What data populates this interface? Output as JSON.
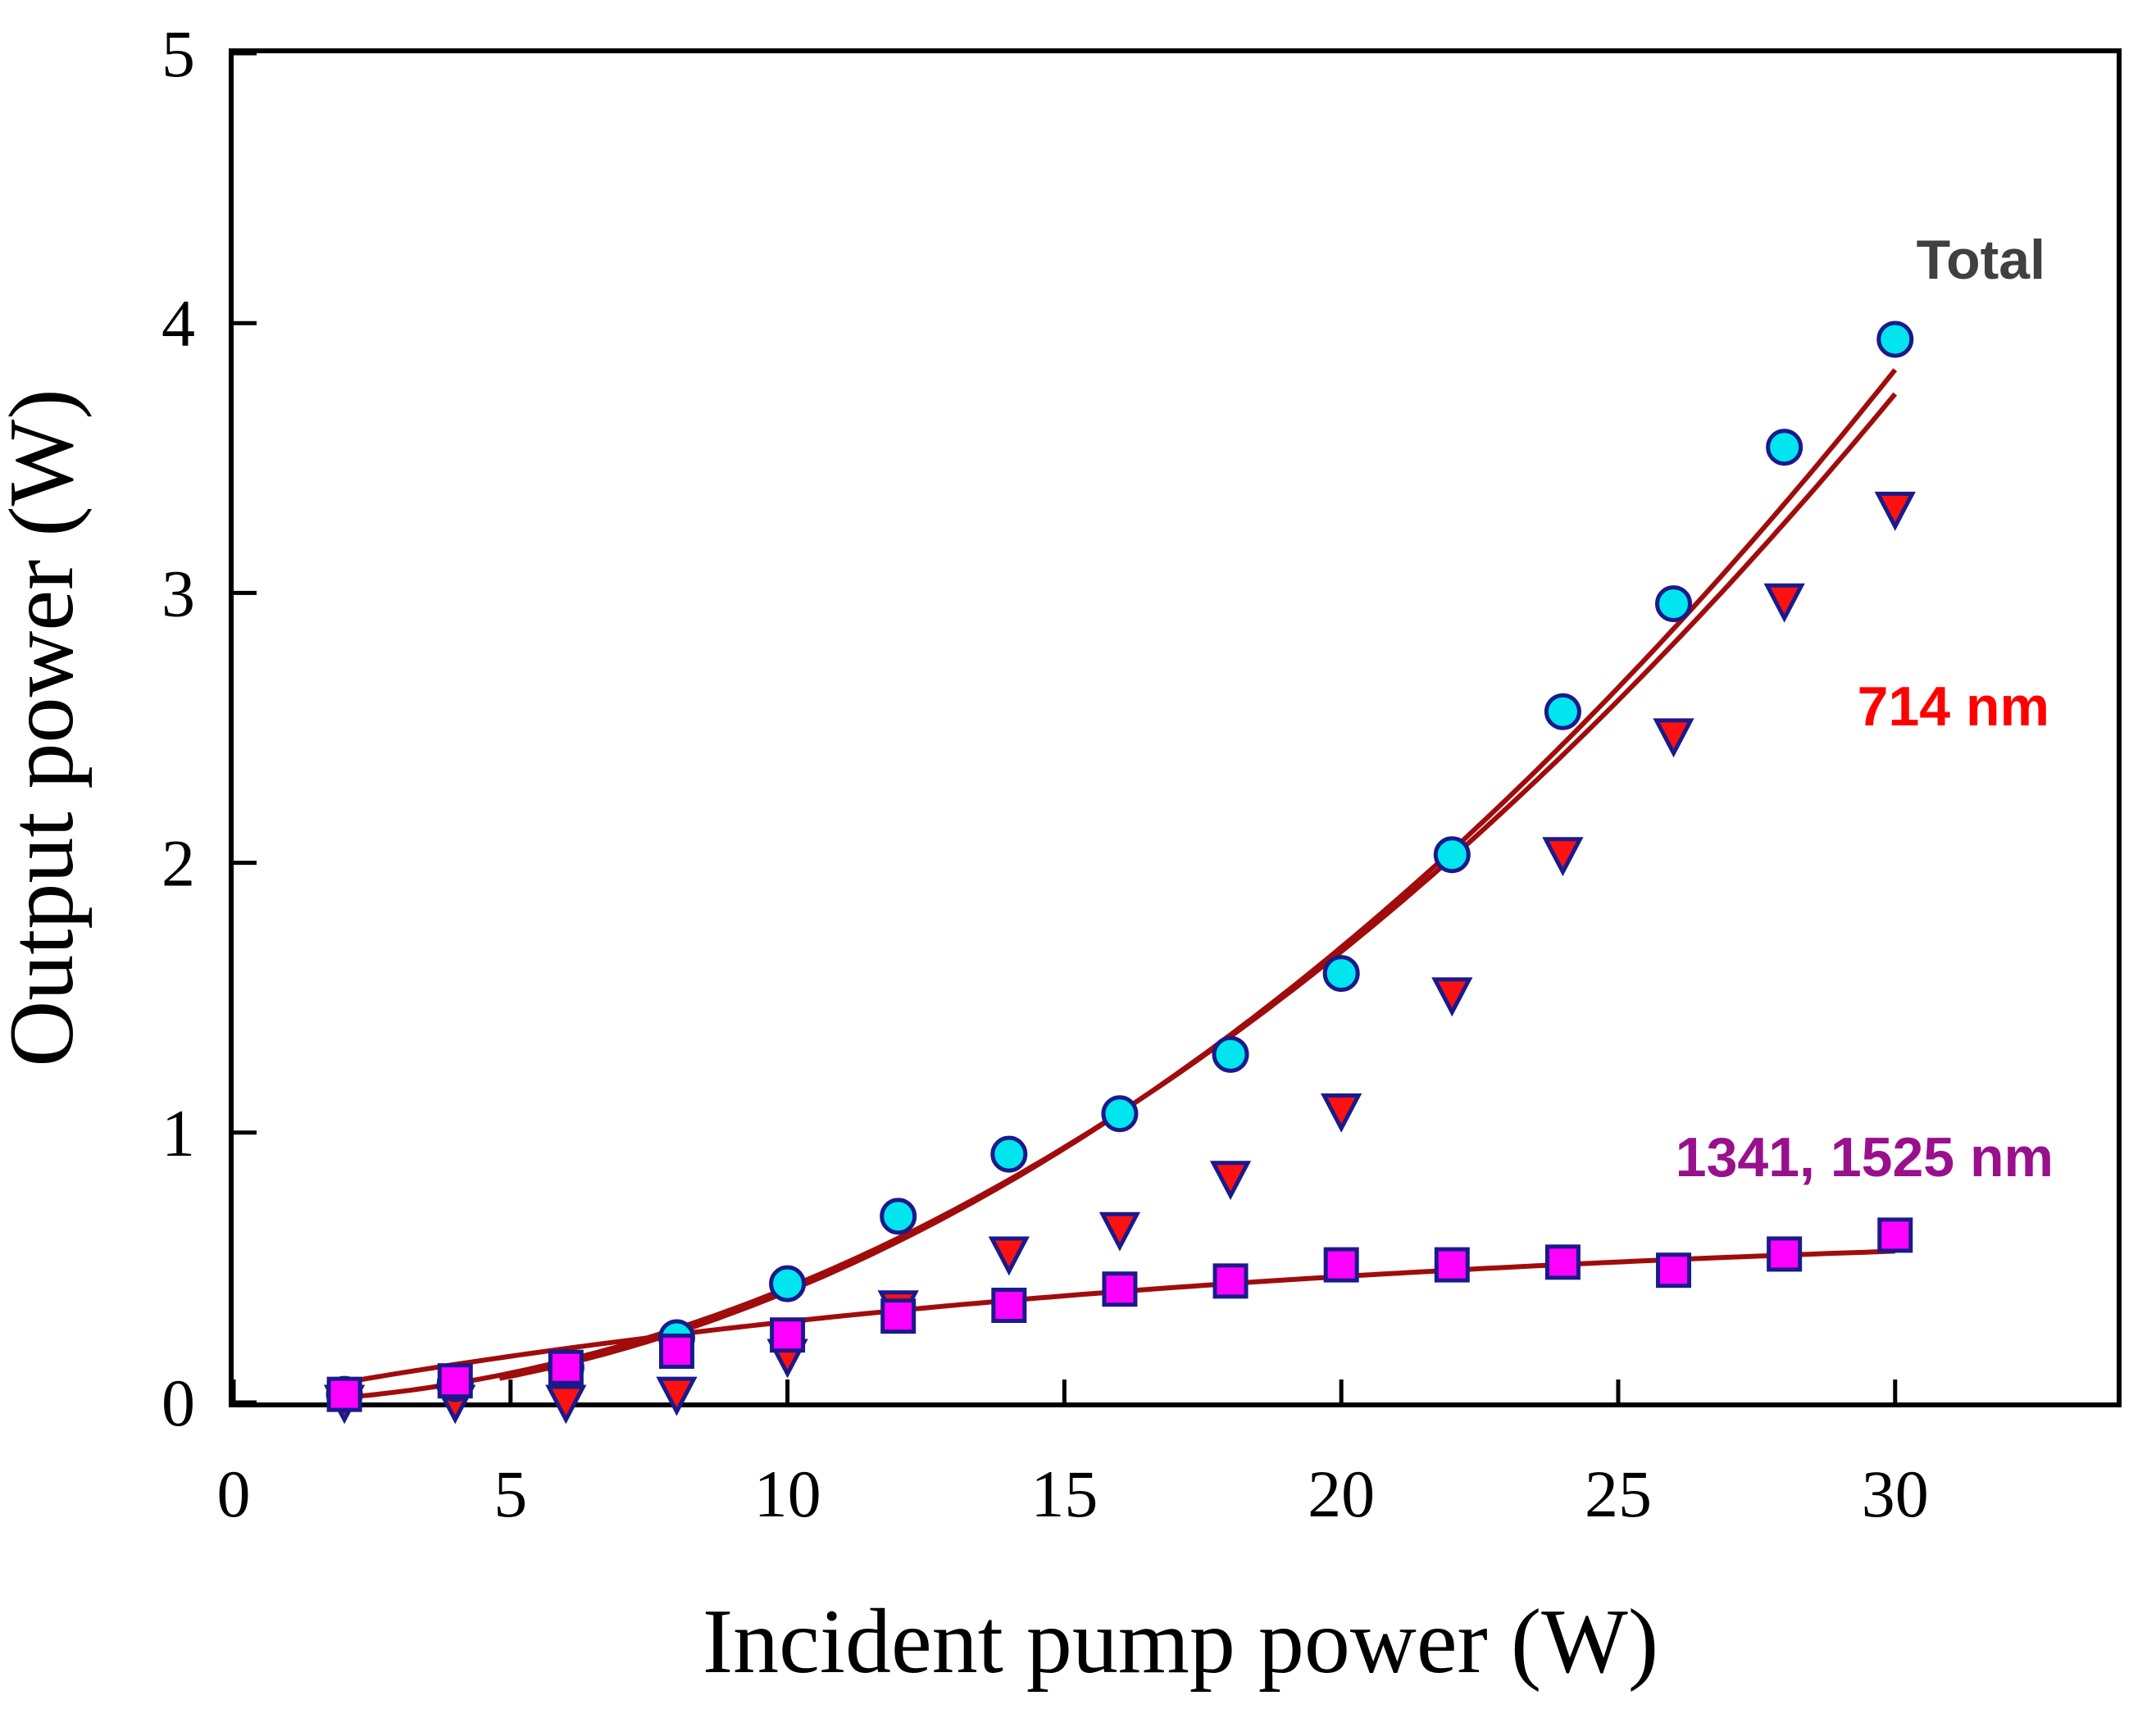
{
  "chart_data": {
    "type": "scatter",
    "title": "",
    "xlabel": "Incident pump power (W)",
    "ylabel": "Output power (W)",
    "xlim": [
      0,
      34
    ],
    "ylim": [
      0,
      5
    ],
    "xticks": [
      0,
      5,
      10,
      15,
      20,
      25,
      30
    ],
    "yticks": [
      0,
      1,
      2,
      3,
      4,
      5
    ],
    "grid": false,
    "legend": "none",
    "x": [
      2,
      4,
      6,
      8,
      10,
      12,
      14,
      16,
      18,
      20,
      22,
      24,
      26,
      28,
      30
    ],
    "series": [
      {
        "name": "Total",
        "label_text": "Total",
        "label_color": "#404040",
        "marker": "circle",
        "fill": "#00e5ee",
        "stroke": "#1a1a8c",
        "values": [
          0.03,
          0.07,
          0.13,
          0.24,
          0.44,
          0.69,
          0.92,
          1.07,
          1.29,
          1.59,
          2.03,
          2.56,
          2.96,
          3.54,
          3.94
        ],
        "fit": {
          "a": 0.0041,
          "b": 0.00164,
          "c": -0.00164,
          "x_start": 2,
          "x_end": 30
        }
      },
      {
        "name": "714 nm",
        "label_text": "714 nm",
        "label_color": "#ff0000",
        "marker": "triangle-down",
        "fill": "#ff1111",
        "stroke": "#1a1a8c",
        "values": [
          0.0,
          0.0,
          0.0,
          0.03,
          0.17,
          0.35,
          0.55,
          0.64,
          0.83,
          1.08,
          1.51,
          2.03,
          2.47,
          2.97,
          3.31
        ],
        "fit": {
          "a": 0.00432,
          "b": -0.002,
          "c": -0.0009,
          "x_start": 4.8,
          "x_end": 30
        }
      },
      {
        "name": "1341, 1525 nm",
        "label_text": "1341, 1525 nm",
        "label_color": "#99108c",
        "marker": "square",
        "fill": "#ff00ff",
        "stroke": "#1a1a8c",
        "values": [
          0.03,
          0.08,
          0.13,
          0.19,
          0.25,
          0.32,
          0.36,
          0.42,
          0.45,
          0.51,
          0.51,
          0.52,
          0.49,
          0.55,
          0.62
        ],
        "fit": {
          "p": 0.68,
          "k": 0.058,
          "x_start": 2,
          "x_end": 30
        }
      }
    ]
  }
}
